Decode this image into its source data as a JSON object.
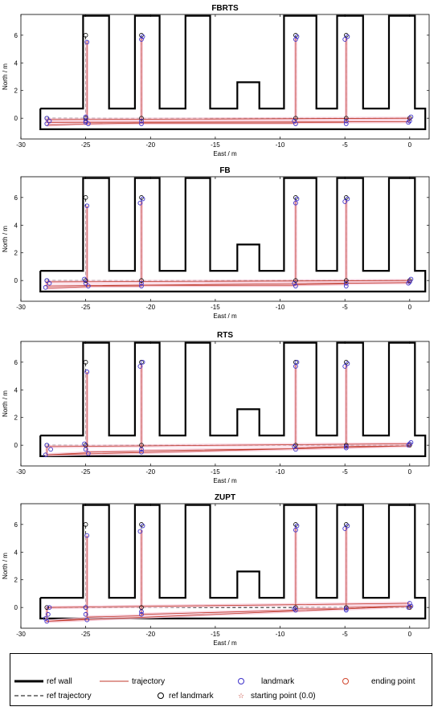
{
  "axes_common": {
    "xlabel": "East / m",
    "ylabel": "North / m",
    "xlim": [
      -30,
      1.5
    ],
    "ylim": [
      -1.5,
      7.5
    ],
    "xticks": [
      -30,
      -25,
      -20,
      -15,
      -10,
      -5,
      0
    ],
    "yticks": [
      0,
      2,
      4,
      6
    ]
  },
  "chart_data": [
    {
      "type": "line",
      "title": "FBRTS",
      "series": [
        {
          "name": "ref wall",
          "x": [
            -28.5,
            -25.2,
            -25.2,
            -23.2,
            -23.2,
            -21.2,
            -21.2,
            -19.3,
            -19.3,
            -17.3,
            -17.3,
            -15.4,
            -15.4,
            -13.3,
            -13.3,
            -11.6,
            -11.6,
            -9.7,
            -9.7,
            -7.2,
            -7.2,
            -5.6,
            -5.6,
            -3.6,
            -3.6,
            -1.6,
            -1.6,
            0.4,
            0.4,
            1.2,
            1.2,
            -28.5,
            -28.5
          ],
          "y": [
            0.7,
            0.7,
            7.4,
            7.4,
            0.7,
            0.7,
            7.4,
            7.4,
            0.7,
            0.7,
            7.4,
            7.4,
            0.7,
            0.7,
            2.6,
            2.6,
            0.7,
            0.7,
            7.4,
            7.4,
            0.7,
            0.7,
            7.4,
            7.4,
            0.7,
            0.7,
            7.4,
            7.4,
            0.7,
            0.7,
            -0.8,
            -0.8,
            0.7
          ]
        },
        {
          "name": "trajectory",
          "x": [
            0,
            -28,
            -28,
            0,
            -4.9,
            -4.9,
            -4.9,
            -8.8,
            -8.8,
            -8.8,
            -20.7,
            -20.7,
            -20.7,
            -24.9,
            -24.9,
            -24.9,
            -28
          ],
          "y": [
            0,
            -0.1,
            -0.3,
            -0.25,
            -0.25,
            5.8,
            -0.3,
            -0.3,
            5.8,
            -0.35,
            -0.35,
            5.8,
            -0.35,
            -0.4,
            5.6,
            -0.4,
            -0.5
          ]
        },
        {
          "name": "ref landmark",
          "x": [
            -28,
            -25,
            -25,
            -20.7,
            -20.7,
            -8.8,
            -8.8,
            -4.9,
            -4.9,
            0
          ],
          "y": [
            0,
            0,
            6,
            0,
            6,
            0,
            6,
            0,
            6,
            0
          ]
        },
        {
          "name": "landmark",
          "x": [
            -28,
            -27.8,
            -28,
            -25,
            -24.9,
            -25,
            -24.8,
            -25,
            -20.7,
            -20.6,
            -20.7,
            -20.7,
            -8.9,
            -8.7,
            -8.8,
            -8.8,
            -4.9,
            -4.8,
            -5,
            -4.9,
            0,
            0.1,
            -0.1
          ],
          "y": [
            0,
            -0.2,
            -0.4,
            -0.2,
            5.5,
            0.1,
            -0.4,
            -0.3,
            -0.2,
            5.9,
            5.7,
            -0.4,
            -0.2,
            5.9,
            5.7,
            -0.4,
            -0.2,
            5.9,
            5.7,
            -0.4,
            -0.2,
            0.1,
            -0.3
          ]
        }
      ]
    },
    {
      "type": "line",
      "title": "FB",
      "series": [
        {
          "name": "ref wall",
          "x": [
            -28.5,
            -25.2,
            -25.2,
            -23.2,
            -23.2,
            -21.2,
            -21.2,
            -19.3,
            -19.3,
            -17.3,
            -17.3,
            -15.4,
            -15.4,
            -13.3,
            -13.3,
            -11.6,
            -11.6,
            -9.7,
            -9.7,
            -7.2,
            -7.2,
            -5.6,
            -5.6,
            -3.6,
            -3.6,
            -1.6,
            -1.6,
            0.4,
            0.4,
            1.2,
            1.2,
            -28.5,
            -28.5
          ],
          "y": [
            0.7,
            0.7,
            7.4,
            7.4,
            0.7,
            0.7,
            7.4,
            7.4,
            0.7,
            0.7,
            7.4,
            7.4,
            0.7,
            0.7,
            2.6,
            2.6,
            0.7,
            0.7,
            7.4,
            7.4,
            0.7,
            0.7,
            7.4,
            7.4,
            0.7,
            0.7,
            7.4,
            7.4,
            0.7,
            0.7,
            -0.8,
            -0.8,
            0.7
          ]
        },
        {
          "name": "trajectory",
          "x": [
            0,
            -28,
            -28,
            0,
            -4.9,
            -4.9,
            -4.9,
            -8.8,
            -8.8,
            -8.8,
            -20.7,
            -20.7,
            -20.7,
            -24.9,
            -24.9,
            -24.9,
            -28
          ],
          "y": [
            0,
            -0.1,
            -0.4,
            -0.15,
            -0.2,
            5.8,
            -0.25,
            -0.3,
            5.8,
            -0.35,
            -0.35,
            5.7,
            -0.4,
            -0.4,
            5.4,
            -0.45,
            -0.55
          ]
        },
        {
          "name": "ref landmark",
          "x": [
            -28,
            -25,
            -25,
            -20.7,
            -20.7,
            -8.8,
            -8.8,
            -4.9,
            -4.9,
            0
          ],
          "y": [
            0,
            0,
            6,
            0,
            6,
            0,
            6,
            0,
            6,
            0
          ]
        },
        {
          "name": "landmark",
          "x": [
            -28,
            -27.8,
            -28.1,
            -25,
            -24.9,
            -25.1,
            -24.8,
            -20.7,
            -20.6,
            -20.8,
            -20.7,
            -8.9,
            -8.7,
            -8.8,
            -8.8,
            -4.9,
            -4.8,
            -5,
            -4.9,
            0,
            0.1,
            -0.1
          ],
          "y": [
            0,
            -0.2,
            -0.5,
            -0.2,
            5.4,
            0.1,
            -0.4,
            -0.2,
            5.9,
            5.6,
            -0.4,
            -0.2,
            5.9,
            5.6,
            -0.4,
            -0.2,
            5.9,
            5.7,
            -0.4,
            -0.1,
            0.1,
            -0.2
          ]
        }
      ]
    },
    {
      "type": "line",
      "title": "RTS",
      "series": [
        {
          "name": "ref wall",
          "x": [
            -28.5,
            -25.2,
            -25.2,
            -23.2,
            -23.2,
            -21.2,
            -21.2,
            -19.3,
            -19.3,
            -17.3,
            -17.3,
            -15.4,
            -15.4,
            -13.3,
            -13.3,
            -11.6,
            -11.6,
            -9.7,
            -9.7,
            -7.2,
            -7.2,
            -5.6,
            -5.6,
            -3.6,
            -3.6,
            -1.6,
            -1.6,
            0.4,
            0.4,
            1.2,
            1.2,
            -28.5,
            -28.5
          ],
          "y": [
            0.7,
            0.7,
            7.4,
            7.4,
            0.7,
            0.7,
            7.4,
            7.4,
            0.7,
            0.7,
            7.4,
            7.4,
            0.7,
            0.7,
            2.6,
            2.6,
            0.7,
            0.7,
            7.4,
            7.4,
            0.7,
            0.7,
            7.4,
            7.4,
            0.7,
            0.7,
            7.4,
            7.4,
            0.7,
            0.7,
            -0.8,
            -0.8,
            0.7
          ]
        },
        {
          "name": "trajectory",
          "x": [
            0,
            -28,
            -28,
            0,
            -4.9,
            -4.9,
            -4.9,
            -8.8,
            -8.8,
            -8.8,
            -20.7,
            -20.7,
            -20.7,
            -24.9,
            -24.9,
            -24.9,
            -28
          ],
          "y": [
            0.1,
            -0.1,
            -0.7,
            -0.05,
            -0.1,
            5.8,
            -0.1,
            -0.2,
            5.8,
            -0.25,
            -0.4,
            5.8,
            -0.45,
            -0.5,
            5.3,
            -0.55,
            -0.7
          ]
        },
        {
          "name": "ref landmark",
          "x": [
            -28,
            -25,
            -25,
            -20.7,
            -20.7,
            -8.8,
            -8.8,
            -4.9,
            -4.9,
            0
          ],
          "y": [
            0,
            0,
            6,
            0,
            6,
            0,
            6,
            0,
            6,
            0
          ]
        },
        {
          "name": "landmark",
          "x": [
            -28,
            -27.7,
            -28.1,
            -25,
            -24.9,
            -25.1,
            -24.8,
            -20.7,
            -20.6,
            -20.8,
            -20.7,
            -8.9,
            -8.7,
            -8.8,
            -8.8,
            -4.9,
            -4.8,
            -5,
            -4.9,
            0,
            0.1,
            -0.1
          ],
          "y": [
            0,
            -0.3,
            -0.7,
            -0.3,
            5.3,
            0.1,
            -0.6,
            -0.3,
            6,
            5.7,
            -0.5,
            -0.1,
            6,
            5.7,
            -0.3,
            -0.1,
            5.9,
            5.7,
            -0.2,
            0.1,
            0.2,
            0
          ]
        }
      ]
    },
    {
      "type": "line",
      "title": "ZUPT",
      "series": [
        {
          "name": "ref wall",
          "x": [
            -28.5,
            -25.2,
            -25.2,
            -23.2,
            -23.2,
            -21.2,
            -21.2,
            -19.3,
            -19.3,
            -17.3,
            -17.3,
            -15.4,
            -15.4,
            -13.3,
            -13.3,
            -11.6,
            -11.6,
            -9.7,
            -9.7,
            -7.2,
            -7.2,
            -5.6,
            -5.6,
            -3.6,
            -3.6,
            -1.6,
            -1.6,
            0.4,
            0.4,
            1.2,
            1.2,
            -28.5,
            -28.5
          ],
          "y": [
            0.7,
            0.7,
            7.4,
            7.4,
            0.7,
            0.7,
            7.4,
            7.4,
            0.7,
            0.7,
            7.4,
            7.4,
            0.7,
            0.7,
            2.6,
            2.6,
            0.7,
            0.7,
            7.4,
            7.4,
            0.7,
            0.7,
            7.4,
            7.4,
            0.7,
            0.7,
            7.4,
            7.4,
            0.7,
            0.7,
            -0.8,
            -0.8,
            0.7
          ]
        },
        {
          "name": "trajectory",
          "x": [
            0,
            -28,
            -28,
            0.2,
            -4.9,
            -4.9,
            -4.9,
            -8.8,
            -8.8,
            -8.8,
            -20.7,
            -20.7,
            -20.7,
            -24.9,
            -24.9,
            -24.9,
            -28
          ],
          "y": [
            0.3,
            0,
            -1,
            0.1,
            0,
            5.8,
            -0.1,
            -0.1,
            5.8,
            -0.2,
            -0.5,
            5.6,
            -0.6,
            -0.7,
            5.2,
            -0.8,
            -1
          ]
        },
        {
          "name": "ref landmark",
          "x": [
            -28,
            -25,
            -25,
            -20.7,
            -20.7,
            -8.8,
            -8.8,
            -4.9,
            -4.9,
            0
          ],
          "y": [
            0,
            0,
            6,
            0,
            6,
            0,
            6,
            0,
            6,
            0
          ]
        },
        {
          "name": "landmark",
          "x": [
            -27.8,
            -27.9,
            -28.1,
            -28,
            -25,
            -24.9,
            -25,
            -24.9,
            -20.7,
            -20.6,
            -20.8,
            -20.7,
            -8.9,
            -8.7,
            -8.8,
            -8.8,
            -4.9,
            -4.8,
            -5,
            -4.9,
            0,
            0.1,
            -0.1
          ],
          "y": [
            0,
            -0.5,
            -0.8,
            -1,
            -0.5,
            5.2,
            0,
            -0.9,
            -0.3,
            5.9,
            5.5,
            -0.5,
            -0.1,
            5.9,
            5.6,
            -0.2,
            -0.1,
            5.9,
            5.7,
            -0.2,
            0.3,
            0.1,
            0
          ]
        }
      ]
    }
  ],
  "legend": {
    "items": [
      {
        "label": "ref wall",
        "style": "thick-line",
        "color": "#000000"
      },
      {
        "label": "trajectory",
        "style": "line",
        "color": "#c0392b"
      },
      {
        "label": "landmark",
        "style": "circle",
        "color": "#3b2fc9"
      },
      {
        "label": "ending point",
        "style": "circle",
        "color": "#d0442b"
      },
      {
        "label": "ref trajectory",
        "style": "dashed-line",
        "color": "#000000"
      },
      {
        "label": "ref landmark",
        "style": "circle",
        "color": "#000000"
      },
      {
        "label": "starting point (0.0)",
        "style": "star",
        "color": "#c0392b"
      }
    ]
  },
  "colors": {
    "wall": "#000000",
    "trajectory": "#c0392b",
    "trajectory_halo": "#f6c9d8",
    "landmark": "#3b2fc9",
    "ref_landmark": "#000000",
    "ending_point": "#d0442b",
    "start_point": "#c0392b"
  }
}
